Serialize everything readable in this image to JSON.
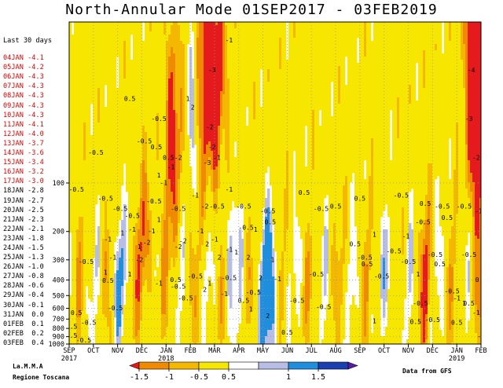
{
  "title": "North-Annular Mode 01SEP2017 - 03FEB2019",
  "last30": {
    "header": "Last 30 days",
    "rows": [
      {
        "date": "04JAN",
        "value": "-4.1",
        "color": "#e00000"
      },
      {
        "date": "05JAN",
        "value": "-4.2",
        "color": "#e00000"
      },
      {
        "date": "06JAN",
        "value": "-4.3",
        "color": "#e00000"
      },
      {
        "date": "07JAN",
        "value": "-4.3",
        "color": "#e00000"
      },
      {
        "date": "08JAN",
        "value": "-4.3",
        "color": "#e00000"
      },
      {
        "date": "09JAN",
        "value": "-4.3",
        "color": "#e00000"
      },
      {
        "date": "10JAN",
        "value": "-4.3",
        "color": "#e00000"
      },
      {
        "date": "11JAN",
        "value": "-4.1",
        "color": "#e00000"
      },
      {
        "date": "12JAN",
        "value": "-4.0",
        "color": "#e00000"
      },
      {
        "date": "13JAN",
        "value": "-3.7",
        "color": "#e00000"
      },
      {
        "date": "14JAN",
        "value": "-3.6",
        "color": "#e00000"
      },
      {
        "date": "15JAN",
        "value": "-3.4",
        "color": "#e00000"
      },
      {
        "date": "16JAN",
        "value": "-3.2",
        "color": "#e00000"
      },
      {
        "date": "17JAN",
        "value": "-3.0",
        "color": "#e00000"
      },
      {
        "date": "18JAN",
        "value": "-2.8",
        "color": "#000000"
      },
      {
        "date": "19JAN",
        "value": "-2.7",
        "color": "#000000"
      },
      {
        "date": "20JAN",
        "value": "-2.5",
        "color": "#000000"
      },
      {
        "date": "21JAN",
        "value": "-2.3",
        "color": "#000000"
      },
      {
        "date": "22JAN",
        "value": "-2.1",
        "color": "#000000"
      },
      {
        "date": "23JAN",
        "value": "-1.8",
        "color": "#000000"
      },
      {
        "date": "24JAN",
        "value": "-1.5",
        "color": "#000000"
      },
      {
        "date": "25JAN",
        "value": "-1.3",
        "color": "#000000"
      },
      {
        "date": "26JAN",
        "value": "-1.0",
        "color": "#000000"
      },
      {
        "date": "27JAN",
        "value": "-0.8",
        "color": "#000000"
      },
      {
        "date": "28JAN",
        "value": "-0.6",
        "color": "#000000"
      },
      {
        "date": "29JAN",
        "value": "-0.4",
        "color": "#000000"
      },
      {
        "date": "30JAN",
        "value": "-0.1",
        "color": "#000000"
      },
      {
        "date": "31JAN",
        "value": "0.0",
        "color": "#000000"
      },
      {
        "date": "01FEB",
        "value": "0.1",
        "color": "#000000"
      },
      {
        "date": "02FEB",
        "value": "0.2",
        "color": "#000000"
      },
      {
        "date": "03FEB",
        "value": "0.4",
        "color": "#000000"
      }
    ]
  },
  "credits": {
    "left_line1": "La.M.M.A",
    "left_line2": "Regione Toscana",
    "right": "Data from GFS"
  },
  "chart_data": {
    "type": "heatmap",
    "title": "North-Annular Mode 01SEP2017 - 03FEB2019",
    "x_axis": {
      "months": [
        "SEP",
        "OCT",
        "NOV",
        "DEC",
        "JAN",
        "FEB",
        "MAR",
        "APR",
        "MAY",
        "JUN",
        "JUL",
        "AUG",
        "SEP",
        "OCT",
        "NOV",
        "DEC",
        "JAN",
        "FEB"
      ],
      "years": [
        {
          "label": "2017",
          "month_index": 0
        },
        {
          "label": "2018",
          "month_index": 4
        },
        {
          "label": "2019",
          "month_index": 16
        }
      ]
    },
    "y_axis": {
      "scale": "log",
      "unit_implied": "hPa",
      "ticks": [
        100,
        200,
        300,
        400,
        500,
        600,
        700,
        800,
        900,
        1000
      ],
      "range": [
        1000,
        10
      ]
    },
    "colorbar": {
      "levels": [
        -1.5,
        -1,
        -0.5,
        0.5,
        1,
        1.5
      ],
      "labels": [
        "-1.5",
        "-1",
        "-0.5",
        "0.5",
        "1",
        "1.5"
      ],
      "colors": [
        "#e41a1c",
        "#f08a00",
        "#f5b800",
        "#f7e600",
        "#ffffff",
        "#b8bde6",
        "#1f8fdd",
        "#1a3fb0",
        "#5a1aa8"
      ]
    },
    "contour_labels": [
      {
        "text": "-4",
        "month": 16.6,
        "p": 20
      },
      {
        "text": "-3",
        "month": 16.5,
        "p": 40
      },
      {
        "text": "-2",
        "month": 16.8,
        "p": 70
      },
      {
        "text": "-3",
        "month": 17.1,
        "p": 65
      },
      {
        "text": "-2",
        "month": 17.1,
        "p": 190
      },
      {
        "text": "-1",
        "month": 16.9,
        "p": 150
      },
      {
        "text": "-0.5",
        "month": 16.3,
        "p": 140
      },
      {
        "text": "-0.5",
        "month": 16.5,
        "p": 280
      },
      {
        "text": "-1",
        "month": 17.0,
        "p": 900
      },
      {
        "text": "-3",
        "month": 5.9,
        "p": 20
      },
      {
        "text": "-1",
        "month": 6.6,
        "p": 13
      },
      {
        "text": "-2",
        "month": 5.8,
        "p": 45
      },
      {
        "text": "-2",
        "month": 5.9,
        "p": 60
      },
      {
        "text": "-3",
        "month": 5.7,
        "p": 75
      },
      {
        "text": "-1",
        "month": 6.1,
        "p": 70
      },
      {
        "text": "-1",
        "month": 6.6,
        "p": 110
      },
      {
        "text": "-0.5",
        "month": 7.2,
        "p": 140
      },
      {
        "text": "-2",
        "month": 5.6,
        "p": 140
      },
      {
        "text": "-1",
        "month": 5.2,
        "p": 120
      },
      {
        "text": "-2",
        "month": 4.5,
        "p": 70
      },
      {
        "text": "-1",
        "month": 4.2,
        "p": 80
      },
      {
        "text": "-0.5",
        "month": 3.7,
        "p": 40
      },
      {
        "text": "-0.5",
        "month": 3.1,
        "p": 55
      },
      {
        "text": "-0.5",
        "month": 1.1,
        "p": 65
      },
      {
        "text": "-0.5",
        "month": 0.3,
        "p": 110
      },
      {
        "text": "0.5",
        "month": 2.5,
        "p": 30
      },
      {
        "text": "0.5",
        "month": 3.6,
        "p": 60
      },
      {
        "text": "0.5",
        "month": 4.1,
        "p": 70
      },
      {
        "text": "2",
        "month": 5.1,
        "p": 34
      },
      {
        "text": "1",
        "month": 4.9,
        "p": 30
      },
      {
        "text": "1",
        "month": 3.7,
        "p": 90
      },
      {
        "text": "-1",
        "month": 3.9,
        "p": 100
      },
      {
        "text": "-0.5",
        "month": 3.5,
        "p": 130
      },
      {
        "text": "-0.5",
        "month": 1.5,
        "p": 125
      },
      {
        "text": "-0.5",
        "month": 2.1,
        "p": 145
      },
      {
        "text": "-0.5",
        "month": 2.6,
        "p": 160
      },
      {
        "text": "-0.5",
        "month": 4.5,
        "p": 145
      },
      {
        "text": "-0.5",
        "month": 6.1,
        "p": 140
      },
      {
        "text": "-0.5",
        "month": 7.3,
        "p": 190
      },
      {
        "text": "-0.5",
        "month": 8.2,
        "p": 150
      },
      {
        "text": "0.5",
        "month": 9.7,
        "p": 115
      },
      {
        "text": "-0.5",
        "month": 10.4,
        "p": 145
      },
      {
        "text": "0.5",
        "month": 11.0,
        "p": 140
      },
      {
        "text": "0.5",
        "month": 12.0,
        "p": 125
      },
      {
        "text": "-0.5",
        "month": 13.7,
        "p": 120
      },
      {
        "text": "0.5",
        "month": 14.7,
        "p": 135
      },
      {
        "text": "-0.5",
        "month": 15.4,
        "p": 140
      },
      {
        "text": "0.5",
        "month": 15.6,
        "p": 165
      },
      {
        "text": "-0.5",
        "month": 14.6,
        "p": 175
      },
      {
        "text": "1",
        "month": 3.7,
        "p": 170
      },
      {
        "text": "-1",
        "month": 3.4,
        "p": 200
      },
      {
        "text": "-2",
        "month": 4.7,
        "p": 230
      },
      {
        "text": "-2",
        "month": 4.5,
        "p": 250
      },
      {
        "text": "-1",
        "month": 5.4,
        "p": 200
      },
      {
        "text": "-1",
        "month": 6.0,
        "p": 225
      },
      {
        "text": "2",
        "month": 5.7,
        "p": 240
      },
      {
        "text": "2",
        "month": 6.2,
        "p": 290
      },
      {
        "text": "-1",
        "month": 6.6,
        "p": 260
      },
      {
        "text": "1",
        "month": 6.9,
        "p": 270
      },
      {
        "text": "2",
        "month": 7.4,
        "p": 290
      },
      {
        "text": "1",
        "month": 7.7,
        "p": 195
      },
      {
        "text": "0.5",
        "month": 8.3,
        "p": 175
      },
      {
        "text": "-2",
        "month": 3.2,
        "p": 235
      },
      {
        "text": "-2",
        "month": 2.9,
        "p": 300
      },
      {
        "text": "-1",
        "month": 1.6,
        "p": 225
      },
      {
        "text": "-1",
        "month": 2.6,
        "p": 195
      },
      {
        "text": "1",
        "month": 2.2,
        "p": 205
      },
      {
        "text": "1",
        "month": 2.9,
        "p": 250
      },
      {
        "text": "-1",
        "month": 1.8,
        "p": 290
      },
      {
        "text": "1",
        "month": 2.5,
        "p": 370
      },
      {
        "text": "1",
        "month": 1.5,
        "p": 360
      },
      {
        "text": "-0.5",
        "month": 0.7,
        "p": 310
      },
      {
        "text": "0.5",
        "month": 1.6,
        "p": 405
      },
      {
        "text": "-0.5",
        "month": 0.8,
        "p": 740
      },
      {
        "text": "-0.5",
        "month": 1.9,
        "p": 600
      },
      {
        "text": "-1",
        "month": 3.7,
        "p": 420
      },
      {
        "text": "-0.5",
        "month": 4.8,
        "p": 520
      },
      {
        "text": "-0.5",
        "month": 4.5,
        "p": 440
      },
      {
        "text": "0.5",
        "month": 4.4,
        "p": 400
      },
      {
        "text": "1",
        "month": 5.8,
        "p": 420
      },
      {
        "text": "2",
        "month": 5.6,
        "p": 460
      },
      {
        "text": "-1",
        "month": 6.4,
        "p": 490
      },
      {
        "text": "-0.5",
        "month": 5.2,
        "p": 380
      },
      {
        "text": "-0.5",
        "month": 6.6,
        "p": 390
      },
      {
        "text": "-0.5",
        "month": 7.6,
        "p": 480
      },
      {
        "text": "-1",
        "month": 8.6,
        "p": 395
      },
      {
        "text": "1",
        "month": 8.4,
        "p": 300
      },
      {
        "text": "2",
        "month": 8.2,
        "p": 670
      },
      {
        "text": "1",
        "month": 7.5,
        "p": 610
      },
      {
        "text": "0.5",
        "month": 7.2,
        "p": 540
      },
      {
        "text": "-0.5",
        "month": 9.4,
        "p": 540
      },
      {
        "text": "0.5",
        "month": 9.0,
        "p": 850
      },
      {
        "text": "2",
        "month": 7.9,
        "p": 390
      },
      {
        "text": "-0.5",
        "month": 10.2,
        "p": 370
      },
      {
        "text": "-0.5",
        "month": 10.5,
        "p": 590
      },
      {
        "text": "-0.5",
        "month": 12.2,
        "p": 290
      },
      {
        "text": "0.5",
        "month": 12.3,
        "p": 320
      },
      {
        "text": "-0.5",
        "month": 12.9,
        "p": 380
      },
      {
        "text": "1",
        "month": 12.6,
        "p": 210
      },
      {
        "text": "0.5",
        "month": 11.8,
        "p": 240
      },
      {
        "text": "-1",
        "month": 13.9,
        "p": 215
      },
      {
        "text": "-0.5",
        "month": 13.4,
        "p": 265
      },
      {
        "text": "-0.5",
        "month": 14.0,
        "p": 310
      },
      {
        "text": "1",
        "month": 14.4,
        "p": 370
      },
      {
        "text": "-0.5",
        "month": 15.1,
        "p": 280
      },
      {
        "text": "0.5",
        "month": 15.3,
        "p": 320
      },
      {
        "text": "-0.5",
        "month": 14.5,
        "p": 560
      },
      {
        "text": "0.5",
        "month": 14.3,
        "p": 730
      },
      {
        "text": "-0.5",
        "month": 15.0,
        "p": 710
      },
      {
        "text": "0.5",
        "month": 16.0,
        "p": 740
      },
      {
        "text": "-0.5",
        "month": 15.8,
        "p": 470
      },
      {
        "text": "-1",
        "month": 16.0,
        "p": 520
      },
      {
        "text": "0.5",
        "month": 16.5,
        "p": 560
      },
      {
        "text": "-1",
        "month": 16.8,
        "p": 640
      },
      {
        "text": "0.5",
        "month": 17.0,
        "p": 400
      },
      {
        "text": "1",
        "month": 16.3,
        "p": 560
      },
      {
        "text": "1",
        "month": 17.3,
        "p": 310
      },
      {
        "text": "1",
        "month": 12.6,
        "p": 720
      },
      {
        "text": "0.5",
        "month": 0.3,
        "p": 640
      },
      {
        "text": "0.5",
        "month": 0.1,
        "p": 780
      },
      {
        "text": "-0.5",
        "month": 0.6,
        "p": 950
      },
      {
        "text": "0.5",
        "month": 0.1,
        "p": 890
      }
    ]
  }
}
